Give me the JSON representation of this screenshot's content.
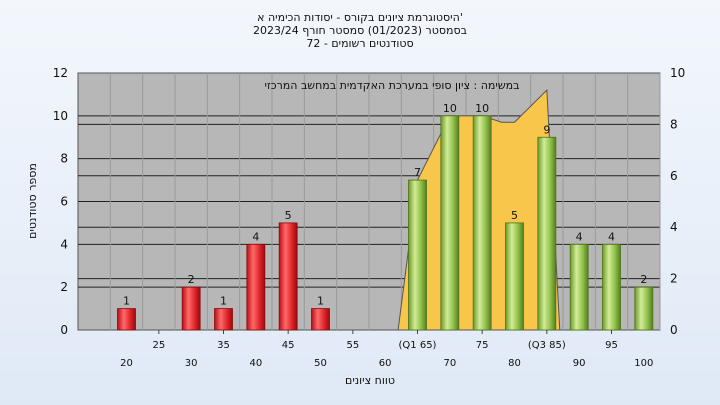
{
  "chart_data": {
    "type": "bar",
    "title_lines": [
      "היסטוגרמת ציונים בקורס - יסודות הכימיה א'",
      "בסמסטר (01/2023) סמסטר חורף 2023/24",
      "72 - סטודנטים רשומים"
    ],
    "annotation": "במשימה : ציון סופי במערכת האקדמית במחשב המרכזי",
    "xlabel": "טווח ציונים",
    "ylabel": "מספר סטודנטים",
    "ylim": [
      0,
      12
    ],
    "y2lim": [
      0,
      10
    ],
    "y_ticks": [
      0,
      2,
      4,
      6,
      8,
      10,
      12
    ],
    "y2_ticks": [
      0,
      2,
      4,
      6,
      8,
      10
    ],
    "x_ticks_upper": [
      "25",
      "35",
      "45",
      "55",
      "(Q1 65)",
      "75",
      "(Q3 85)",
      "95"
    ],
    "x_ticks_lower": [
      "20",
      "30",
      "40",
      "50",
      "60",
      "70",
      "80",
      "90",
      "100"
    ],
    "bars": [
      {
        "x": 20,
        "value": 1,
        "label": "1",
        "color": "red"
      },
      {
        "x": 30,
        "value": 2,
        "label": "2",
        "color": "red"
      },
      {
        "x": 35,
        "value": 1,
        "label": "1",
        "color": "red"
      },
      {
        "x": 40,
        "value": 4,
        "label": "4",
        "color": "red"
      },
      {
        "x": 45,
        "value": 5,
        "label": "5",
        "color": "red"
      },
      {
        "x": 50,
        "value": 1,
        "label": "1",
        "color": "red"
      },
      {
        "x": 65,
        "value": 7,
        "label": "7",
        "color": "green"
      },
      {
        "x": 70,
        "value": 10,
        "label": "10",
        "color": "green"
      },
      {
        "x": 75,
        "value": 10,
        "label": "10",
        "color": "green"
      },
      {
        "x": 80,
        "value": 5,
        "label": "5",
        "color": "green"
      },
      {
        "x": 85,
        "value": 9,
        "label": "9",
        "color": "green"
      },
      {
        "x": 90,
        "value": 4,
        "label": "4",
        "color": "green"
      },
      {
        "x": 95,
        "value": 4,
        "label": "4",
        "color": "green"
      },
      {
        "x": 100,
        "value": 2,
        "label": "2",
        "color": "green"
      }
    ],
    "area": {
      "color": "#f9c64c",
      "points": [
        [
          62,
          0
        ],
        [
          65,
          7
        ],
        [
          70,
          10
        ],
        [
          75,
          10
        ],
        [
          78,
          9.7
        ],
        [
          80,
          9.7
        ],
        [
          85,
          11.2
        ],
        [
          87,
          0
        ]
      ]
    },
    "grid": true,
    "colors": {
      "plot_bg": "#b7b7b7",
      "red": "#e0262a",
      "green": "#8fc04a"
    }
  }
}
